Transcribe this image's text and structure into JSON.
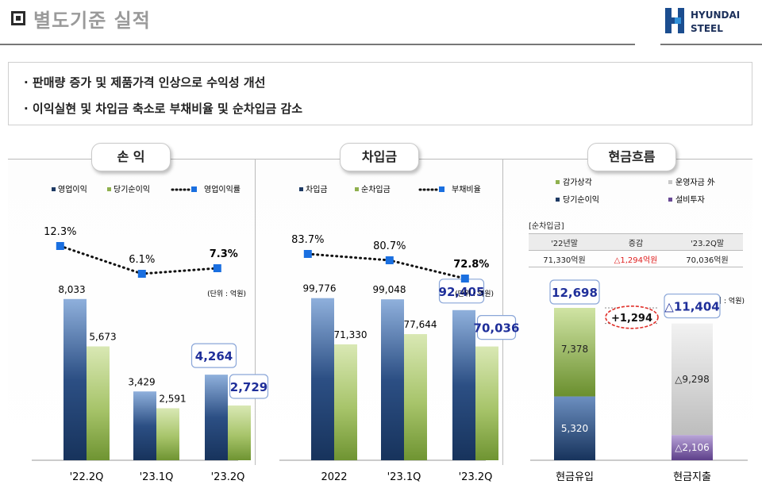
{
  "header": {
    "title": "별도기준 실적",
    "logo_line1": "HYUNDAI",
    "logo_line2": "STEEL"
  },
  "bullets": [
    "판매량 증가 및 제품가격 인상으로 수익성 개선",
    "이익실현 및 차입금 축소로 부채비율 및 순차입금 감소"
  ],
  "panels": {
    "profit": "손 익",
    "debt": "차입금",
    "cash": "현금흐름"
  },
  "colors": {
    "navy": "#1e3a64",
    "green": "#8fb04e",
    "point": "#1a6fe0",
    "highlight": "#1f2f9a",
    "purple": "#6a4a96",
    "gray": "#c8c8c8"
  },
  "chart_data": [
    {
      "type": "bar",
      "categories": [
        "'22.2Q",
        "'23.1Q",
        "'23.2Q"
      ],
      "series": [
        {
          "name": "영업이익",
          "values": [
            8033,
            3429,
            4264
          ]
        },
        {
          "name": "당기순이익",
          "values": [
            5673,
            2591,
            2729
          ]
        }
      ],
      "line": {
        "name": "영업이익률",
        "values": [
          12.3,
          6.1,
          7.3
        ],
        "labels": [
          "12.3%",
          "6.1%",
          "7.3%"
        ]
      },
      "bar_labels": [
        [
          "8,033",
          "3,429",
          "4,264"
        ],
        [
          "5,673",
          "2,591",
          "2,729"
        ]
      ],
      "unit": "(단위 : 억원)",
      "ylim": [
        0,
        8500
      ],
      "legend_position": "top"
    },
    {
      "type": "bar",
      "categories": [
        "2022",
        "'23.1Q",
        "'23.2Q"
      ],
      "series": [
        {
          "name": "차입금",
          "values": [
            99776,
            99048,
            92405
          ]
        },
        {
          "name": "순차입금",
          "values": [
            71330,
            77644,
            70036
          ]
        }
      ],
      "line": {
        "name": "부채비율",
        "values": [
          83.7,
          80.7,
          72.8
        ],
        "labels": [
          "83.7%",
          "80.7%",
          "72.8%"
        ]
      },
      "bar_labels": [
        [
          "99,776",
          "99,048",
          "92,405"
        ],
        [
          "71,330",
          "77,644",
          "70,036"
        ]
      ],
      "unit": "(단위 : 억원)",
      "ylim": [
        0,
        105000
      ],
      "legend_position": "top"
    },
    {
      "type": "bar",
      "categories": [
        "현금유입",
        "현금지출"
      ],
      "inflow": {
        "total": 12698,
        "total_label": "12,698",
        "segments": [
          {
            "name": "당기순이익",
            "value": 5320,
            "label": "5,320"
          },
          {
            "name": "감가상각",
            "value": 7378,
            "label": "7,378"
          }
        ]
      },
      "outflow": {
        "total": 11404,
        "total_label": "△11,404",
        "segments": [
          {
            "name": "설비투자",
            "value": 2106,
            "label": "△2,106"
          },
          {
            "name": "운영자금 外",
            "value": 9298,
            "label": "△9,298"
          }
        ]
      },
      "difference_label": "+1,294",
      "legend": [
        "감가상각",
        "운영자금 外",
        "당기순이익",
        "설비투자"
      ],
      "unit": "(단위 : 억원)",
      "ylim": [
        0,
        13000
      ],
      "net_debt_table": {
        "caption": "[순차입금]",
        "headers": [
          "'22년말",
          "증감",
          "'23.2Q말"
        ],
        "values": [
          "71,330억원",
          "△1,294억원",
          "70,036억원"
        ]
      }
    }
  ]
}
